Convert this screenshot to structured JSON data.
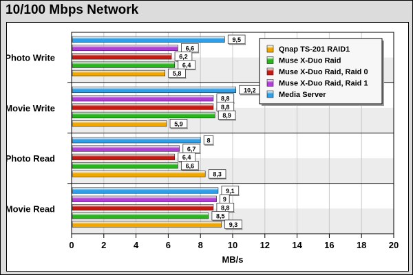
{
  "title": "10/100 Mbps Network",
  "chart_data": {
    "type": "bar",
    "orientation": "horizontal",
    "categories": [
      "Photo Write",
      "Movie Write",
      "Photo Read",
      "Movie Read"
    ],
    "series": [
      {
        "name": "Media Server",
        "color": "#2f9fe8",
        "values": [
          9.5,
          10.2,
          8,
          9.1
        ],
        "labels": [
          "9,5",
          "10,2",
          "8",
          "9,1"
        ]
      },
      {
        "name": "Muse X-Duo Raid, Raid 1",
        "color": "#b03fd6",
        "values": [
          6.6,
          8.8,
          6.7,
          9
        ],
        "labels": [
          "6,6",
          "8,8",
          "6,7",
          "9"
        ]
      },
      {
        "name": "Muse X-Duo Raid, Raid 0",
        "color": "#c41a12",
        "values": [
          6.2,
          8.8,
          6.4,
          8.8
        ],
        "labels": [
          "6,2",
          "8,8",
          "6,4",
          "8,8"
        ]
      },
      {
        "name": "Muse X-Duo Raid",
        "color": "#27b61c",
        "values": [
          6.4,
          8.9,
          6.6,
          8.5
        ],
        "labels": [
          "6,4",
          "8,9",
          "6,6",
          "8,5"
        ]
      },
      {
        "name": "Qnap TS-201 RAID1",
        "color": "#f0a800",
        "values": [
          5.8,
          5.9,
          8.3,
          9.3
        ],
        "labels": [
          "5,8",
          "5,9",
          "8,3",
          "9,3"
        ]
      }
    ],
    "legend_order": [
      "Qnap TS-201 RAID1",
      "Muse X-Duo Raid",
      "Muse X-Duo Raid, Raid 0",
      "Muse X-Duo Raid, Raid 1",
      "Media Server"
    ],
    "xlabel": "MB/s",
    "xlim": [
      0,
      20
    ],
    "xticks": [
      0,
      2,
      4,
      6,
      8,
      10,
      12,
      14,
      16,
      18,
      20
    ],
    "legend_position": "top-right",
    "grid": true
  }
}
